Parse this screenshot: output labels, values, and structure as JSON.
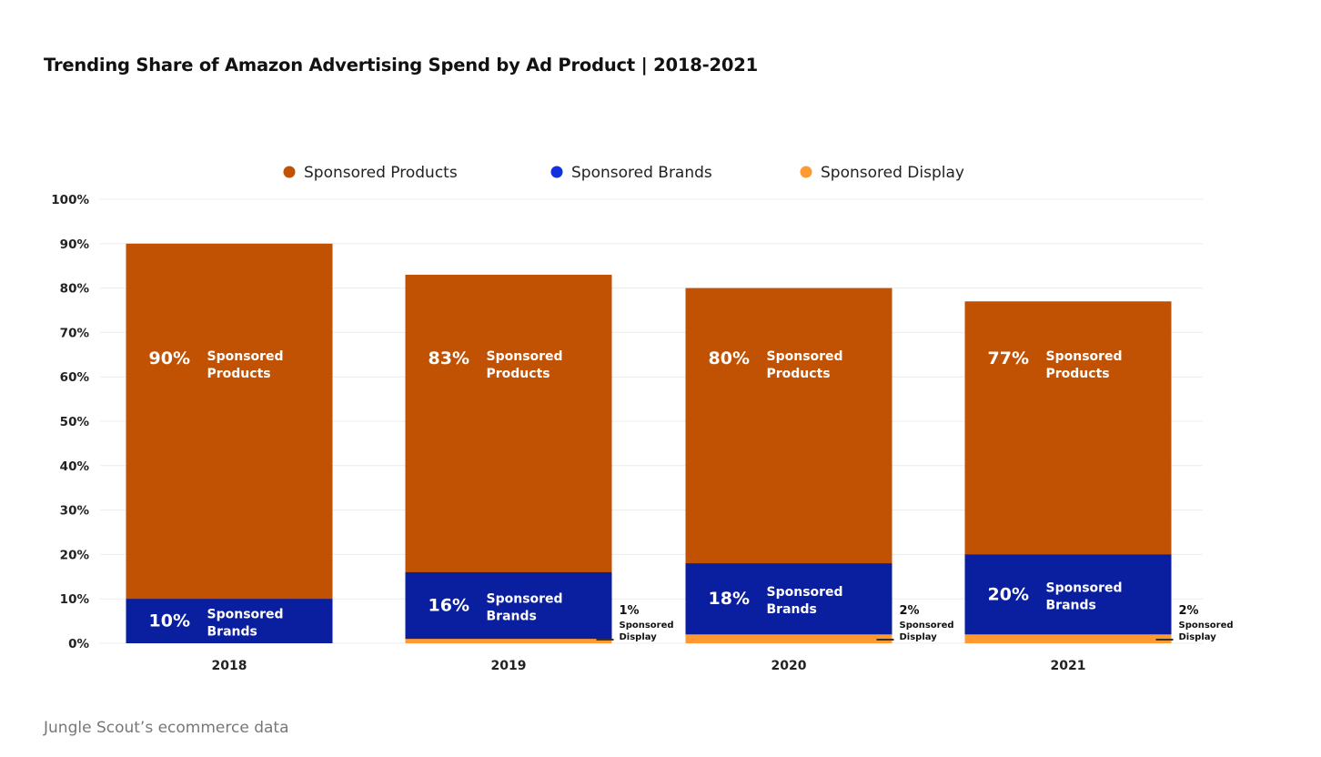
{
  "chart_data": {
    "type": "bar",
    "layout": "overlapping",
    "title": "Trending Share of Amazon Advertising Spend by Ad Product | 2018-2021",
    "source": "Jungle Scout’s ecommerce data",
    "categories": [
      "2018",
      "2019",
      "2020",
      "2021"
    ],
    "ylim": [
      0,
      100
    ],
    "yticks": [
      "0%",
      "10%",
      "20%",
      "30%",
      "40%",
      "50%",
      "60%",
      "70%",
      "80%",
      "90%",
      "100%"
    ],
    "grid": true,
    "legend_position": "top",
    "series": [
      {
        "name": "Sponsored Products",
        "label_lines": [
          "Sponsored",
          "Products"
        ],
        "color": "#C25203",
        "legend_color": "#C25203",
        "values": [
          90,
          83,
          80,
          77
        ],
        "labels": [
          "90%",
          "83%",
          "80%",
          "77%"
        ]
      },
      {
        "name": "Sponsored Brands",
        "label_lines": [
          "Sponsored",
          "Brands"
        ],
        "color": "#0A1FA0",
        "legend_color": "#1230E0",
        "values": [
          10,
          16,
          18,
          20
        ],
        "labels": [
          "10%",
          "16%",
          "18%",
          "20%"
        ]
      },
      {
        "name": "Sponsored Display",
        "label_lines": [
          "Sponsored",
          "Display"
        ],
        "color": "#FF9A33",
        "legend_color": "#FF9A33",
        "values": [
          0,
          1,
          2,
          2
        ],
        "labels": [
          "",
          "1%",
          "2%",
          "2%"
        ]
      }
    ]
  }
}
